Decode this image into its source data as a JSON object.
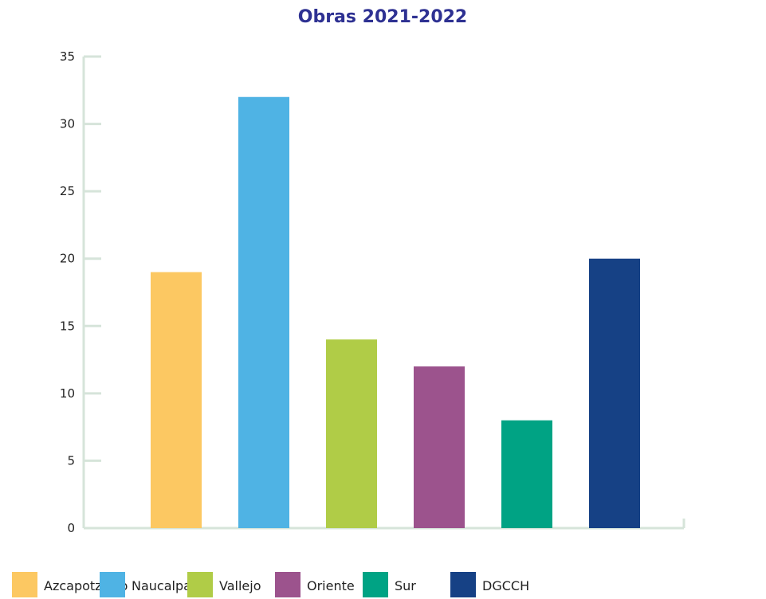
{
  "chart_data": {
    "type": "bar",
    "title": "Obras 2021-2022",
    "categories": [
      "Azcapotzalco",
      "Naucalpan",
      "Vallejo",
      "Oriente",
      "Sur",
      "DGCCH"
    ],
    "values": [
      19,
      32,
      14,
      12,
      8,
      20
    ],
    "colors": [
      "#fcc862",
      "#4fb3e4",
      "#b0cc47",
      "#9c538d",
      "#00a384",
      "#164185"
    ],
    "ylim": [
      0,
      35
    ],
    "yticks": [
      0,
      5,
      10,
      15,
      20,
      25,
      30,
      35
    ],
    "ytick_labels": [
      "0",
      "5",
      "10",
      "15",
      "20",
      "25",
      "30",
      "35"
    ],
    "xlabel": "",
    "ylabel": "",
    "grid": false,
    "legend": "bottom",
    "title_color": "#2e3192",
    "axis_color": "#d6e4da"
  }
}
